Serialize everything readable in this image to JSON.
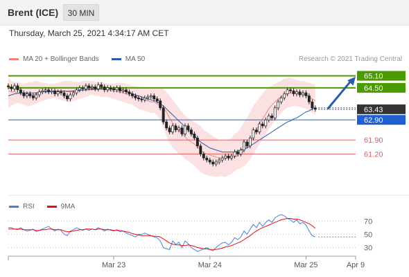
{
  "header": {
    "title": "Brent (ICE)",
    "interval": "30 MIN"
  },
  "datetime": "Thursday, March 25, 2021 4:34:17 AM CET",
  "copyright": "Research © 2021 Trading Central",
  "colors": {
    "up": "#4a9a00",
    "support": "#1f5fcf",
    "red_level": "#e06060",
    "last": "#333333",
    "bollinger": "#f8c8c8",
    "ma50": "#2a5ca8",
    "rsi": "#4c7fd4",
    "rsi_ma": "#e01010"
  },
  "chart_data": [
    {
      "type": "candlestick",
      "legend": [
        {
          "name": "MA 20 + Bollinger Bands",
          "color": "#f08080"
        },
        {
          "name": "MA 50",
          "color": "#2a5ca8"
        }
      ],
      "ylim": [
        59.9,
        65.6
      ],
      "x_ticks": [
        "Mar 23",
        "Mar 24",
        "Mar 25",
        "Apr 9"
      ],
      "x_tick_index": [
        34,
        65,
        96,
        112
      ],
      "levels": [
        {
          "value": 65.1,
          "label": "65.10",
          "kind": "resistance"
        },
        {
          "value": 64.5,
          "label": "64.50",
          "kind": "resistance"
        },
        {
          "value": 63.43,
          "label": "63.43",
          "kind": "last"
        },
        {
          "value": 62.9,
          "label": "62.90",
          "kind": "support"
        },
        {
          "value": 61.9,
          "label": "61.90",
          "kind": "line"
        },
        {
          "value": 61.2,
          "label": "61.20",
          "kind": "line"
        }
      ],
      "arrow": {
        "from_index": 103,
        "from_value": 63.45,
        "to_index": 112,
        "to_value": 65.05
      },
      "close": [
        64.55,
        64.45,
        64.6,
        64.4,
        64.25,
        64.1,
        64.2,
        64.1,
        64.0,
        64.15,
        64.3,
        64.35,
        64.4,
        64.3,
        64.35,
        64.2,
        64.3,
        64.25,
        64.1,
        63.95,
        64.15,
        64.25,
        64.4,
        64.5,
        64.45,
        64.6,
        64.5,
        64.55,
        64.45,
        64.65,
        64.55,
        64.4,
        64.5,
        64.45,
        64.4,
        64.5,
        64.35,
        64.4,
        64.3,
        64.2,
        64.1,
        64.0,
        63.95,
        63.9,
        64.0,
        64.05,
        64.1,
        63.95,
        63.85,
        63.5,
        62.8,
        62.5,
        62.3,
        62.6,
        62.4,
        62.5,
        62.2,
        62.6,
        62.4,
        62.2,
        62.0,
        61.6,
        61.2,
        61.0,
        60.9,
        60.8,
        60.7,
        60.8,
        60.9,
        61.0,
        61.1,
        61.0,
        61.1,
        61.3,
        61.2,
        61.4,
        61.8,
        61.6,
        62.0,
        62.4,
        62.3,
        62.7,
        62.6,
        62.9,
        63.1,
        63.0,
        63.5,
        63.8,
        64.0,
        64.2,
        64.4,
        64.35,
        64.2,
        64.3,
        64.15,
        64.25,
        64.1,
        63.8,
        63.5,
        63.43
      ],
      "bollinger": {
        "upper": [
          65.0,
          64.85,
          64.8,
          64.8,
          64.75,
          64.7,
          64.75,
          64.8,
          64.8,
          64.85,
          64.8,
          64.75,
          64.75,
          64.7,
          64.7,
          64.7,
          64.75,
          64.8,
          64.85,
          64.85,
          64.85,
          64.8,
          64.8,
          64.8,
          64.85,
          64.85,
          64.85,
          64.85,
          64.8,
          64.8,
          64.8,
          64.75,
          64.7,
          64.7,
          64.7,
          64.75,
          64.75,
          64.75,
          64.7,
          64.65,
          64.6,
          64.6,
          64.55,
          64.55,
          64.5,
          64.5,
          64.5,
          64.45,
          64.45,
          64.5,
          64.45,
          64.3,
          64.1,
          63.9,
          63.7,
          63.5,
          63.3,
          63.1,
          63.0,
          62.9,
          62.8,
          62.7,
          62.6,
          62.4,
          62.3,
          62.2,
          62.1,
          62.0,
          61.9,
          61.9,
          61.9,
          61.9,
          62.0,
          62.2,
          62.3,
          62.5,
          62.8,
          63.0,
          63.3,
          63.6,
          63.8,
          64.0,
          64.2,
          64.4,
          64.55,
          64.6,
          64.7,
          64.8,
          64.85,
          64.95,
          65.0,
          65.0,
          64.95,
          64.9,
          64.85,
          64.85,
          64.8,
          64.75,
          64.7,
          64.65
        ],
        "lower": [
          63.5,
          63.6,
          63.7,
          63.75,
          63.7,
          63.65,
          63.6,
          63.6,
          63.65,
          63.7,
          63.8,
          63.85,
          63.9,
          63.95,
          63.95,
          64.0,
          63.95,
          63.9,
          63.85,
          63.8,
          63.8,
          63.85,
          63.9,
          63.95,
          64.0,
          64.05,
          64.1,
          64.15,
          64.1,
          64.1,
          64.05,
          64.05,
          64.05,
          64.0,
          63.95,
          63.9,
          63.85,
          63.8,
          63.75,
          63.7,
          63.65,
          63.55,
          63.45,
          63.4,
          63.35,
          63.3,
          63.25,
          63.25,
          63.15,
          62.9,
          62.5,
          62.1,
          61.75,
          61.5,
          61.35,
          61.2,
          61.1,
          60.95,
          60.85,
          60.75,
          60.6,
          60.45,
          60.3,
          60.2,
          60.15,
          60.1,
          60.1,
          60.05,
          60.1,
          60.1,
          60.05,
          60.15,
          60.2,
          60.35,
          60.45,
          60.5,
          60.6,
          60.75,
          60.95,
          61.2,
          61.45,
          61.7,
          61.95,
          62.2,
          62.45,
          62.65,
          62.85,
          63.05,
          63.25,
          63.4,
          63.5,
          63.55,
          63.6,
          63.6,
          63.55,
          63.5,
          63.45,
          63.35,
          63.25,
          63.15
        ],
        "ma20": [
          64.35,
          64.3,
          64.3,
          64.25,
          64.2,
          64.15,
          64.15,
          64.15,
          64.15,
          64.2,
          64.25,
          64.3,
          64.3,
          64.3,
          64.3,
          64.35,
          64.35,
          64.35,
          64.35,
          64.3,
          64.3,
          64.3,
          64.3,
          64.35,
          64.4,
          64.4,
          64.45,
          64.45,
          64.45,
          64.45,
          64.45,
          64.4,
          64.4,
          64.35,
          64.35,
          64.3,
          64.3,
          64.25,
          64.2,
          64.15,
          64.1,
          64.05,
          64.0,
          63.95,
          63.9,
          63.85,
          63.8,
          63.8,
          63.7,
          63.6,
          63.5,
          63.3,
          63.0,
          62.75,
          62.55,
          62.4,
          62.2,
          62.05,
          61.9,
          61.8,
          61.7,
          61.55,
          61.4,
          61.25,
          61.2,
          61.15,
          61.1,
          61.05,
          61.0,
          61.0,
          61.0,
          61.0,
          61.0,
          61.05,
          61.1,
          61.2,
          61.4,
          61.6,
          61.85,
          62.1,
          62.4,
          62.7,
          62.95,
          63.2,
          63.45,
          63.65,
          63.8,
          63.95,
          64.05,
          64.15,
          64.2,
          64.25,
          64.25,
          64.25,
          64.2,
          64.2,
          64.15,
          64.05,
          63.95,
          63.85
        ]
      },
      "ma50": [
        64.1,
        64.15,
        64.2,
        64.22,
        64.25,
        64.25,
        64.25,
        64.25,
        64.25,
        64.25,
        64.28,
        64.3,
        64.3,
        64.3,
        64.3,
        64.32,
        64.33,
        64.33,
        64.33,
        64.33,
        64.34,
        64.35,
        64.36,
        64.38,
        64.38,
        64.4,
        64.4,
        64.42,
        64.42,
        64.43,
        64.43,
        64.43,
        64.43,
        64.43,
        64.42,
        64.4,
        64.38,
        64.35,
        64.3,
        64.25,
        64.2,
        64.15,
        64.1,
        64.05,
        64.0,
        63.95,
        63.9,
        63.85,
        63.8,
        63.7,
        63.6,
        63.45,
        63.3,
        63.15,
        63.0,
        62.85,
        62.7,
        62.55,
        62.4,
        62.25,
        62.1,
        61.95,
        61.8,
        61.7,
        61.6,
        61.5,
        61.45,
        61.4,
        61.35,
        61.3,
        61.3,
        61.3,
        61.3,
        61.3,
        61.35,
        61.4,
        61.45,
        61.5,
        61.6,
        61.7,
        61.8,
        61.9,
        62.0,
        62.1,
        62.2,
        62.3,
        62.4,
        62.5,
        62.6,
        62.7,
        62.8,
        62.85,
        62.95,
        63.0,
        63.1,
        63.2,
        63.3,
        63.35,
        63.45,
        63.5
      ]
    },
    {
      "type": "line",
      "legend": [
        {
          "name": "RSI",
          "color": "#4c7fd4"
        },
        {
          "name": "9MA",
          "color": "#e01010"
        }
      ],
      "ylim": [
        20,
        85
      ],
      "y_ticks": [
        70,
        50,
        30
      ],
      "rsi": [
        60,
        60,
        58,
        57,
        60,
        57,
        55,
        56,
        58,
        54,
        56,
        58,
        60,
        62,
        58,
        55,
        58,
        56,
        50,
        48,
        55,
        57,
        60,
        58,
        56,
        58,
        56,
        58,
        57,
        60,
        58,
        55,
        58,
        56,
        55,
        57,
        54,
        55,
        52,
        50,
        48,
        46,
        50,
        50,
        52,
        50,
        48,
        46,
        45,
        40,
        30,
        28,
        27,
        40,
        35,
        38,
        30,
        40,
        36,
        30,
        27,
        24,
        26,
        28,
        30,
        27,
        25,
        30,
        34,
        37,
        38,
        34,
        38,
        45,
        42,
        46,
        55,
        50,
        58,
        65,
        60,
        68,
        62,
        68,
        72,
        68,
        75,
        78,
        80,
        78,
        74,
        72,
        68,
        72,
        66,
        68,
        64,
        55,
        48,
        46
      ],
      "rsi_ma": [
        58,
        58,
        58,
        58,
        58,
        57,
        57,
        57,
        57,
        56,
        56,
        57,
        57,
        58,
        58,
        57,
        57,
        57,
        55,
        54,
        54,
        55,
        56,
        57,
        57,
        58,
        58,
        58,
        57,
        58,
        58,
        57,
        57,
        57,
        56,
        56,
        56,
        55,
        54,
        53,
        51,
        50,
        49,
        48,
        48,
        48,
        48,
        47,
        47,
        46,
        43,
        40,
        37,
        35,
        34,
        34,
        33,
        33,
        34,
        33,
        32,
        30,
        29,
        28,
        28,
        27,
        27,
        27,
        28,
        29,
        31,
        32,
        33,
        35,
        37,
        39,
        42,
        45,
        48,
        52,
        55,
        58,
        60,
        62,
        64,
        66,
        68,
        70,
        72,
        73,
        74,
        74,
        73,
        73,
        72,
        70,
        68,
        66,
        63,
        59
      ]
    }
  ]
}
